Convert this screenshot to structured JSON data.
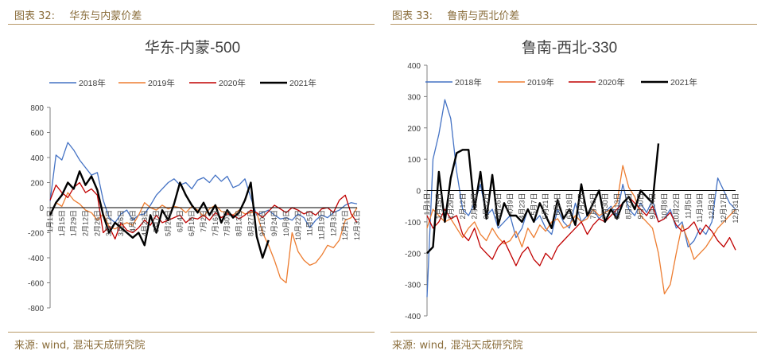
{
  "captions": {
    "left": {
      "label": "图表 32:",
      "title": "华东与内蒙价差"
    },
    "right": {
      "label": "图表 33:",
      "title": "鲁南与西北价差"
    }
  },
  "sources": {
    "left": "来源: wind, 混沌天成研究院",
    "right": "来源: wind, 混沌天成研究院"
  },
  "colors": {
    "2018年": "#4472c4",
    "2019年": "#ed7d31",
    "2020年": "#c00000",
    "2021年": "#000000",
    "accent": "#8a6d3b"
  },
  "chart_data": [
    {
      "type": "line",
      "title": "华东-内蒙-500",
      "xlabel": "",
      "ylabel": "",
      "ylim": [
        -800,
        800
      ],
      "yticks": [
        -800,
        -600,
        -400,
        -200,
        0,
        200,
        400,
        600,
        800
      ],
      "legend": [
        "2018年",
        "2019年",
        "2020年",
        "2021年"
      ],
      "legend_position": "top",
      "x_day_range": [
        1,
        365
      ],
      "x_tick_labels": [
        "1月1日",
        "1月15日",
        "1月29日",
        "2月12日",
        "2月26日",
        "3月12日",
        "3月26日",
        "4月9日",
        "4月23日",
        "5月7日",
        "5月21日",
        "6月4日",
        "6月18日",
        "7月2日",
        "7月16日",
        "7月30日",
        "8月13日",
        "8月27日",
        "9月10日",
        "9月24日",
        "10月8日",
        "10月22日",
        "11月5日",
        "11月19日",
        "12月3日",
        "12月17日",
        "12月31日"
      ],
      "x_tick_days": [
        1,
        15,
        29,
        43,
        57,
        71,
        85,
        99,
        113,
        127,
        141,
        155,
        169,
        183,
        197,
        211,
        225,
        239,
        253,
        267,
        281,
        295,
        309,
        323,
        337,
        351,
        365
      ],
      "series": [
        {
          "name": "2018年",
          "x": [
            1,
            8,
            15,
            22,
            29,
            36,
            43,
            50,
            57,
            64,
            71,
            78,
            85,
            92,
            99,
            106,
            113,
            120,
            127,
            134,
            141,
            148,
            155,
            162,
            169,
            176,
            183,
            190,
            197,
            204,
            211,
            218,
            225,
            232,
            239,
            246,
            253,
            260,
            267,
            274,
            281,
            288,
            295,
            302,
            309,
            316,
            323,
            330,
            337,
            344,
            351,
            358,
            365
          ],
          "y": [
            50,
            420,
            380,
            520,
            460,
            380,
            320,
            260,
            280,
            60,
            -80,
            -120,
            -50,
            -20,
            -100,
            -60,
            -50,
            20,
            100,
            150,
            200,
            230,
            180,
            200,
            150,
            220,
            240,
            200,
            260,
            210,
            250,
            160,
            180,
            230,
            80,
            -60,
            -40,
            -20,
            -60,
            -90,
            -80,
            -100,
            -50,
            -80,
            -160,
            -100,
            -60,
            -80,
            -40,
            -20,
            20,
            40,
            30
          ]
        },
        {
          "name": "2019年",
          "x": [
            1,
            8,
            15,
            22,
            29,
            36,
            43,
            50,
            57,
            64,
            71,
            78,
            85,
            92,
            99,
            106,
            113,
            120,
            127,
            134,
            141,
            148,
            155,
            162,
            169,
            176,
            183,
            190,
            197,
            204,
            211,
            218,
            225,
            232,
            239,
            246,
            253,
            260,
            267,
            274,
            281,
            288,
            295,
            302,
            309,
            316,
            323,
            330,
            337,
            344,
            351,
            358,
            365
          ],
          "y": [
            -50,
            40,
            10,
            120,
            60,
            30,
            -20,
            -40,
            -100,
            -50,
            -150,
            -170,
            -140,
            -120,
            -140,
            -60,
            40,
            0,
            -20,
            20,
            -10,
            10,
            0,
            -40,
            10,
            -20,
            -70,
            -10,
            20,
            -30,
            -40,
            -60,
            -20,
            -50,
            -40,
            -40,
            -200,
            -300,
            -420,
            -560,
            -600,
            -200,
            -350,
            -420,
            -460,
            -440,
            -380,
            -300,
            -320,
            -260,
            -100,
            -80,
            0
          ]
        },
        {
          "name": "2020年",
          "x": [
            1,
            8,
            15,
            22,
            29,
            36,
            43,
            50,
            57,
            64,
            71,
            78,
            85,
            92,
            99,
            106,
            113,
            120,
            127,
            134,
            141,
            148,
            155,
            162,
            169,
            176,
            183,
            190,
            197,
            204,
            211,
            218,
            225,
            232,
            239,
            246,
            253,
            260,
            267,
            274,
            281,
            288,
            295,
            302,
            309,
            316,
            323,
            330,
            337,
            344,
            351,
            358,
            365
          ],
          "y": [
            60,
            180,
            120,
            80,
            160,
            200,
            120,
            150,
            100,
            -200,
            -150,
            -250,
            -120,
            -180,
            -200,
            -160,
            -100,
            -140,
            -60,
            -120,
            -100,
            -80,
            -60,
            -120,
            -80,
            -90,
            -60,
            -100,
            -40,
            -80,
            -50,
            -60,
            -90,
            -60,
            -20,
            -40,
            -80,
            -30,
            20,
            -10,
            -40,
            0,
            -20,
            -50,
            -30,
            -60,
            -10,
            0,
            -40,
            60,
            100,
            -50,
            -120
          ]
        },
        {
          "name": "2021年",
          "x": [
            1,
            8,
            15,
            22,
            29,
            36,
            43,
            50,
            57,
            64,
            71,
            78,
            85,
            92,
            99,
            106,
            113,
            120,
            127,
            134,
            141,
            148,
            155,
            162,
            169,
            176,
            183,
            190,
            197,
            204,
            211,
            218,
            225,
            232,
            239,
            246,
            253,
            260
          ],
          "y": [
            -60,
            40,
            100,
            200,
            150,
            290,
            180,
            250,
            140,
            -60,
            -200,
            -120,
            -160,
            -200,
            -240,
            -200,
            -300,
            -60,
            -200,
            -20,
            -100,
            30,
            200,
            100,
            20,
            -40,
            40,
            -60,
            20,
            -120,
            -20,
            -80,
            -40,
            60,
            200,
            -230,
            -400,
            -260
          ]
        }
      ]
    },
    {
      "type": "line",
      "title": "鲁南-西北-330",
      "xlabel": "",
      "ylabel": "",
      "ylim": [
        -400,
        400
      ],
      "yticks": [
        -400,
        -300,
        -200,
        -100,
        0,
        100,
        200,
        300,
        400
      ],
      "legend": [
        "2018年",
        "2019年",
        "2020年",
        "2021年"
      ],
      "legend_position": "top",
      "x_day_range": [
        1,
        365
      ],
      "x_tick_labels": [
        "1月1日",
        "1月15日",
        "1月29日",
        "2月12日",
        "2月26日",
        "3月12日",
        "3月26日",
        "4月9日",
        "4月23日",
        "5月7日",
        "5月21日",
        "6月4日",
        "6月18日",
        "7月2日",
        "7月16日",
        "7月30日",
        "8月13日",
        "8月27日",
        "9月10日",
        "9月24日",
        "10月8日",
        "10月22日",
        "11月5日",
        "11月19日",
        "12月3日",
        "12月17日",
        "12月31日"
      ],
      "x_tick_days": [
        1,
        15,
        29,
        43,
        57,
        71,
        85,
        99,
        113,
        127,
        141,
        155,
        169,
        183,
        197,
        211,
        225,
        239,
        253,
        267,
        281,
        295,
        309,
        323,
        337,
        351,
        365
      ],
      "series": [
        {
          "name": "2018年",
          "x": [
            1,
            8,
            15,
            22,
            29,
            36,
            43,
            50,
            57,
            64,
            71,
            78,
            85,
            92,
            99,
            106,
            113,
            120,
            127,
            134,
            141,
            148,
            155,
            162,
            169,
            176,
            183,
            190,
            197,
            204,
            211,
            218,
            225,
            232,
            239,
            246,
            253,
            260,
            267,
            274,
            281,
            288,
            295,
            302,
            309,
            316,
            323,
            330,
            337,
            344,
            351,
            358,
            365
          ],
          "y": [
            -340,
            100,
            180,
            290,
            230,
            60,
            -60,
            -80,
            -40,
            20,
            -80,
            -60,
            -120,
            -100,
            -80,
            -150,
            -120,
            -60,
            -100,
            -80,
            -120,
            -140,
            -60,
            -100,
            -120,
            -40,
            -100,
            -80,
            -60,
            -90,
            -70,
            -50,
            -80,
            20,
            -60,
            -80,
            -40,
            -70,
            -30,
            -100,
            -90,
            -60,
            -120,
            -100,
            -180,
            -160,
            -120,
            -140,
            -100,
            40,
            0,
            -40,
            -60
          ]
        },
        {
          "name": "2019年",
          "x": [
            1,
            8,
            15,
            22,
            29,
            36,
            43,
            50,
            57,
            64,
            71,
            78,
            85,
            92,
            99,
            106,
            113,
            120,
            127,
            134,
            141,
            148,
            155,
            162,
            169,
            176,
            183,
            190,
            197,
            204,
            211,
            218,
            225,
            232,
            239,
            246,
            253,
            260,
            267,
            274,
            281,
            288,
            295,
            302,
            309,
            316,
            323,
            330,
            337,
            344,
            351,
            358,
            365
          ],
          "y": [
            -120,
            -60,
            -80,
            -100,
            -90,
            -120,
            -150,
            -120,
            -100,
            -140,
            -160,
            -120,
            -150,
            -170,
            -160,
            -130,
            -180,
            -120,
            -150,
            -110,
            -130,
            -100,
            -90,
            -120,
            -110,
            -80,
            -100,
            -90,
            -60,
            -80,
            -70,
            -60,
            -40,
            80,
            10,
            -20,
            -80,
            -100,
            -120,
            -200,
            -330,
            -300,
            -200,
            -110,
            -160,
            -220,
            -200,
            -180,
            -150,
            -120,
            -100,
            -80,
            -60
          ]
        },
        {
          "name": "2020年",
          "x": [
            1,
            8,
            15,
            22,
            29,
            36,
            43,
            50,
            57,
            64,
            71,
            78,
            85,
            92,
            99,
            106,
            113,
            120,
            127,
            134,
            141,
            148,
            155,
            162,
            169,
            176,
            183,
            190,
            197,
            204,
            211,
            218,
            225,
            232,
            239,
            246,
            253,
            260,
            267,
            274,
            281,
            288,
            295,
            302,
            309,
            316,
            323,
            330,
            337,
            344,
            351,
            358,
            365
          ],
          "y": [
            -80,
            -120,
            -100,
            -60,
            -90,
            -80,
            -140,
            -160,
            -120,
            -180,
            -200,
            -220,
            -180,
            -160,
            -200,
            -240,
            -200,
            -180,
            -220,
            -240,
            -200,
            -220,
            -180,
            -160,
            -140,
            -120,
            -100,
            -140,
            -110,
            -90,
            -100,
            -80,
            -60,
            -40,
            -20,
            -40,
            -60,
            -80,
            -50,
            -100,
            -90,
            -70,
            -110,
            -130,
            -120,
            -100,
            -140,
            -110,
            -130,
            -160,
            -180,
            -150,
            -190
          ]
        },
        {
          "name": "2021年",
          "x": [
            1,
            8,
            15,
            22,
            29,
            36,
            43,
            50,
            57,
            64,
            71,
            78,
            85,
            92,
            99,
            106,
            113,
            120,
            127,
            134,
            141,
            148,
            155,
            162,
            169,
            176,
            183,
            190,
            197,
            204,
            211,
            218,
            225,
            232,
            239,
            246,
            253,
            260,
            267,
            274
          ],
          "y": [
            -200,
            -180,
            60,
            -100,
            40,
            120,
            130,
            130,
            -60,
            60,
            -90,
            50,
            -110,
            -40,
            -80,
            -80,
            -100,
            -60,
            -100,
            -40,
            -80,
            -120,
            -30,
            -90,
            -60,
            -110,
            20,
            -80,
            -40,
            0,
            -100,
            -60,
            -90,
            -40,
            -20,
            -60,
            0,
            -20,
            -40,
            150
          ]
        }
      ]
    }
  ]
}
